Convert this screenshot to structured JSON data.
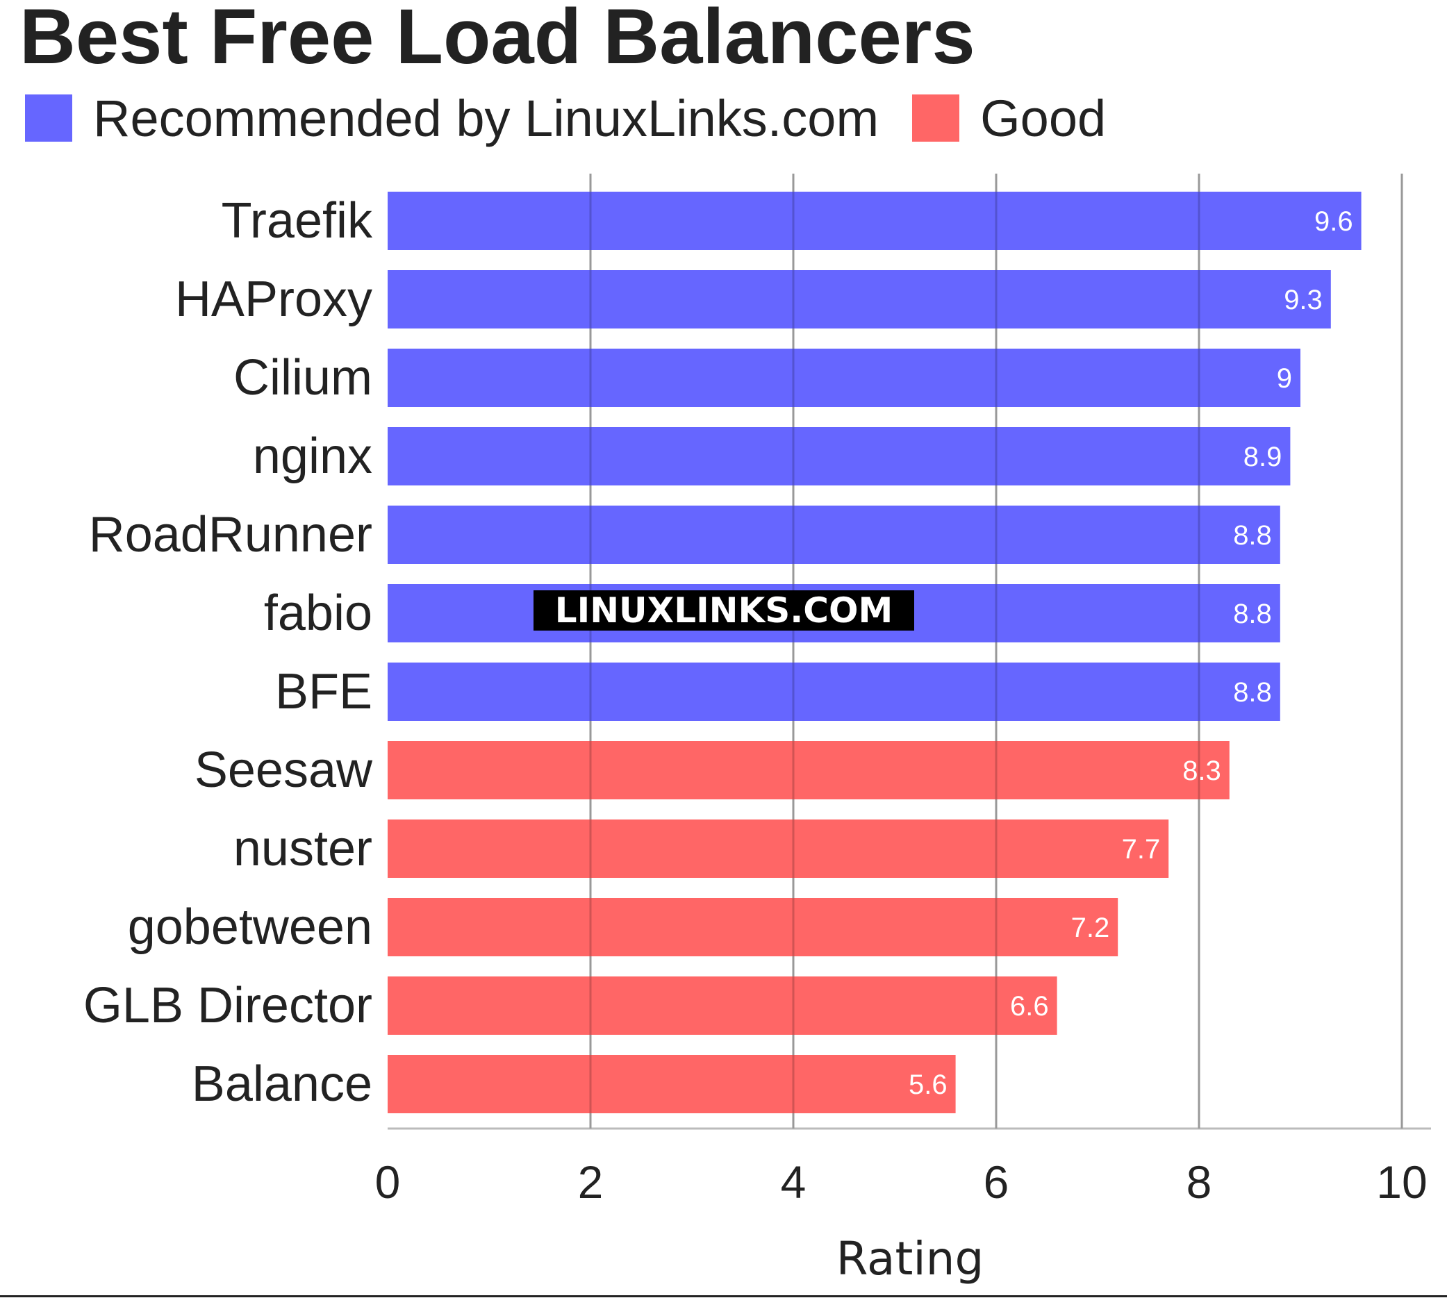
{
  "chart_data": {
    "type": "bar",
    "orientation": "horizontal",
    "title": "Best Free Load Balancers",
    "xlabel": "Rating",
    "ylabel": "",
    "xlim": [
      0,
      10
    ],
    "xticks": [
      0,
      2,
      4,
      6,
      8,
      10
    ],
    "grid": "vertical lines on",
    "legend_placement": "top-left, below title",
    "legend": [
      {
        "label": "Recommended by LinuxLinks.com",
        "color": "#6666ff"
      },
      {
        "label": "Good",
        "color": "#ff6666"
      }
    ],
    "categories": [
      "Traefik",
      "HAProxy",
      "Cilium",
      "nginx",
      "RoadRunner",
      "fabio",
      "BFE",
      "Seesaw",
      "nuster",
      "gobetween",
      "GLB Director",
      "Balance"
    ],
    "values": [
      9.6,
      9.3,
      9,
      8.9,
      8.8,
      8.8,
      8.8,
      8.3,
      7.7,
      7.2,
      6.6,
      5.6
    ],
    "value_labels": [
      "9.6",
      "9.3",
      "9",
      "8.9",
      "8.8",
      "8.8",
      "8.8",
      "8.3",
      "7.7",
      "7.2",
      "6.6",
      "5.6"
    ],
    "groups": [
      "Recommended by LinuxLinks.com",
      "Recommended by LinuxLinks.com",
      "Recommended by LinuxLinks.com",
      "Recommended by LinuxLinks.com",
      "Recommended by LinuxLinks.com",
      "Recommended by LinuxLinks.com",
      "Recommended by LinuxLinks.com",
      "Good",
      "Good",
      "Good",
      "Good",
      "Good"
    ],
    "watermark": "LINUXLINKS.COM"
  }
}
